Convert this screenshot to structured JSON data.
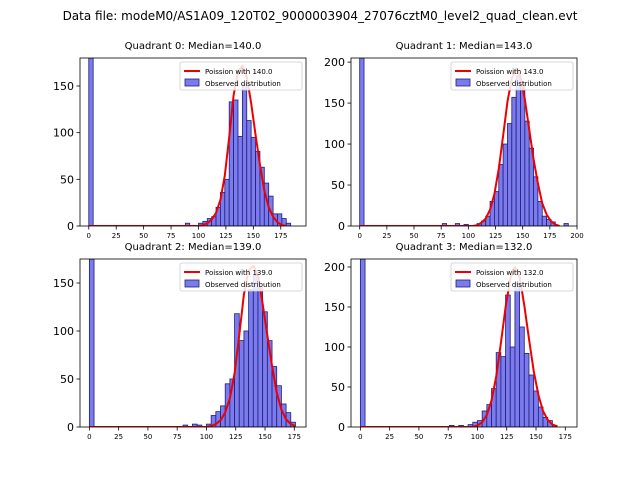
{
  "figure_title": "Data file: modeM0/AS1A09_120T02_9000003904_27076cztM0_level2_quad_clean.evt",
  "colors": {
    "bar_fill": "#7b7bee",
    "bar_edge": "#1f1f7a",
    "curve": "#ee0000"
  },
  "chart_data": [
    {
      "type": "bar",
      "title": "Quadrant 0: Median=140.0",
      "legend": [
        "Poission with 140.0",
        "Observed distribution"
      ],
      "legend_position": "top-right",
      "bin_width": 4,
      "xlim": [
        -8,
        198
      ],
      "ylim": [
        0,
        180
      ],
      "xticks": [
        0,
        25,
        50,
        75,
        100,
        125,
        150,
        175
      ],
      "yticks": [
        0,
        50,
        100,
        150
      ],
      "bins": [
        [
          0,
          180
        ],
        [
          88,
          3
        ],
        [
          100,
          3
        ],
        [
          104,
          5
        ],
        [
          108,
          8
        ],
        [
          112,
          10
        ],
        [
          116,
          20
        ],
        [
          120,
          36
        ],
        [
          124,
          50
        ],
        [
          128,
          133
        ],
        [
          132,
          135
        ],
        [
          136,
          96
        ],
        [
          140,
          152
        ],
        [
          144,
          113
        ],
        [
          148,
          95
        ],
        [
          152,
          80
        ],
        [
          156,
          63
        ],
        [
          160,
          46
        ],
        [
          164,
          32
        ],
        [
          168,
          13
        ],
        [
          172,
          13
        ],
        [
          176,
          8
        ],
        [
          180,
          3
        ]
      ],
      "poisson_mean": 140.0,
      "poisson_x": [
        0,
        100,
        104,
        108,
        112,
        116,
        120,
        124,
        128,
        132,
        136,
        140,
        144,
        148,
        152,
        156,
        160,
        164,
        168,
        172,
        176,
        180
      ],
      "poisson_y": [
        0,
        0,
        1,
        3,
        7,
        14,
        28,
        54,
        95,
        140,
        165,
        172,
        160,
        132,
        98,
        66,
        38,
        20,
        10,
        4,
        1,
        0
      ]
    },
    {
      "type": "bar",
      "title": "Quadrant 1: Median=143.0",
      "legend": [
        "Poission with 143.0",
        "Observed distribution"
      ],
      "legend_position": "top-right",
      "bin_width": 4,
      "xlim": [
        -8,
        200
      ],
      "ylim": [
        0,
        205
      ],
      "xticks": [
        0,
        25,
        50,
        75,
        100,
        125,
        150,
        175,
        200
      ],
      "yticks": [
        0,
        50,
        100,
        150,
        200
      ],
      "bins": [
        [
          0,
          205
        ],
        [
          76,
          3
        ],
        [
          88,
          3
        ],
        [
          96,
          2
        ],
        [
          108,
          3
        ],
        [
          112,
          6
        ],
        [
          116,
          12
        ],
        [
          120,
          30
        ],
        [
          124,
          42
        ],
        [
          128,
          75
        ],
        [
          132,
          100
        ],
        [
          136,
          125
        ],
        [
          140,
          157
        ],
        [
          144,
          183
        ],
        [
          148,
          175
        ],
        [
          152,
          128
        ],
        [
          156,
          95
        ],
        [
          160,
          60
        ],
        [
          164,
          30
        ],
        [
          168,
          12
        ],
        [
          172,
          8
        ],
        [
          176,
          5
        ],
        [
          188,
          3
        ]
      ],
      "poisson_mean": 143.0,
      "poisson_x": [
        0,
        104,
        108,
        112,
        116,
        120,
        124,
        128,
        132,
        136,
        140,
        144,
        148,
        152,
        156,
        160,
        164,
        168,
        172,
        176,
        180,
        184
      ],
      "poisson_y": [
        0,
        0,
        1,
        4,
        9,
        20,
        39,
        70,
        110,
        152,
        180,
        192,
        182,
        155,
        118,
        82,
        52,
        28,
        14,
        6,
        2,
        0
      ]
    },
    {
      "type": "bar",
      "title": "Quadrant 2: Median=139.0",
      "legend": [
        "Poission with 139.0",
        "Observed distribution"
      ],
      "legend_position": "top-right",
      "bin_width": 4,
      "xlim": [
        -8,
        185
      ],
      "ylim": [
        0,
        175
      ],
      "xticks": [
        0,
        25,
        50,
        75,
        100,
        125,
        150,
        175
      ],
      "yticks": [
        0,
        50,
        100,
        150
      ],
      "bins": [
        [
          0,
          175
        ],
        [
          80,
          2
        ],
        [
          88,
          3
        ],
        [
          92,
          2
        ],
        [
          100,
          3
        ],
        [
          104,
          12
        ],
        [
          108,
          16
        ],
        [
          112,
          22
        ],
        [
          116,
          45
        ],
        [
          120,
          50
        ],
        [
          124,
          118
        ],
        [
          128,
          90
        ],
        [
          132,
          100
        ],
        [
          136,
          143
        ],
        [
          140,
          158
        ],
        [
          144,
          145
        ],
        [
          148,
          120
        ],
        [
          152,
          90
        ],
        [
          156,
          63
        ],
        [
          160,
          43
        ],
        [
          164,
          24
        ],
        [
          168,
          15
        ],
        [
          172,
          5
        ]
      ],
      "poisson_mean": 139.0,
      "poisson_x": [
        0,
        100,
        104,
        108,
        112,
        116,
        120,
        124,
        128,
        132,
        136,
        140,
        144,
        148,
        152,
        156,
        160,
        164,
        168,
        172,
        176
      ],
      "poisson_y": [
        0,
        0,
        1,
        3,
        7,
        15,
        30,
        56,
        96,
        138,
        163,
        168,
        158,
        128,
        95,
        64,
        36,
        18,
        8,
        3,
        1
      ]
    },
    {
      "type": "bar",
      "title": "Quadrant 3: Median=132.0",
      "legend": [
        "Poission with 132.0",
        "Observed distribution"
      ],
      "legend_position": "top-right",
      "bin_width": 4,
      "xlim": [
        -8,
        185
      ],
      "ylim": [
        0,
        210
      ],
      "xticks": [
        0,
        25,
        50,
        75,
        100,
        125,
        150,
        175
      ],
      "yticks": [
        0,
        50,
        100,
        150,
        200
      ],
      "bins": [
        [
          0,
          210
        ],
        [
          76,
          2
        ],
        [
          84,
          2
        ],
        [
          92,
          3
        ],
        [
          96,
          6
        ],
        [
          100,
          8
        ],
        [
          104,
          20
        ],
        [
          108,
          28
        ],
        [
          112,
          48
        ],
        [
          116,
          93
        ],
        [
          120,
          88
        ],
        [
          124,
          165
        ],
        [
          128,
          100
        ],
        [
          132,
          180
        ],
        [
          136,
          125
        ],
        [
          140,
          92
        ],
        [
          144,
          65
        ],
        [
          148,
          45
        ],
        [
          152,
          25
        ],
        [
          156,
          12
        ],
        [
          160,
          8
        ],
        [
          164,
          2
        ]
      ],
      "poisson_mean": 132.0,
      "poisson_x": [
        0,
        96,
        100,
        104,
        108,
        112,
        116,
        120,
        124,
        128,
        132,
        136,
        140,
        144,
        148,
        152,
        156,
        160,
        164,
        168
      ],
      "poisson_y": [
        0,
        0,
        2,
        6,
        15,
        33,
        63,
        105,
        150,
        185,
        200,
        188,
        152,
        110,
        70,
        40,
        20,
        9,
        3,
        1
      ]
    }
  ]
}
